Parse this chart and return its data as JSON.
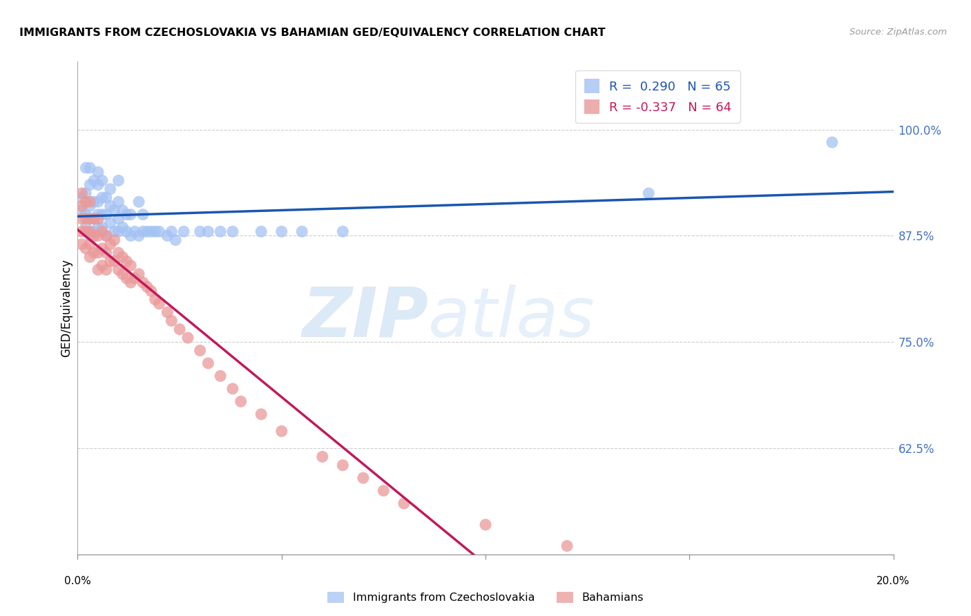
{
  "title": "IMMIGRANTS FROM CZECHOSLOVAKIA VS BAHAMIAN GED/EQUIVALENCY CORRELATION CHART",
  "source": "Source: ZipAtlas.com",
  "ylabel": "GED/Equivalency",
  "y_ticks": [
    0.625,
    0.75,
    0.875,
    1.0
  ],
  "y_tick_labels": [
    "62.5%",
    "75.0%",
    "87.5%",
    "100.0%"
  ],
  "x_lim": [
    0.0,
    0.2
  ],
  "y_lim": [
    0.5,
    1.08
  ],
  "R_blue": 0.29,
  "N_blue": 65,
  "R_pink": -0.337,
  "N_pink": 64,
  "blue_color": "#a4c2f4",
  "pink_color": "#ea9999",
  "blue_line_color": "#1a56b0",
  "pink_line_color": "#c2185b",
  "legend_blue_label": "Immigrants from Czechoslovakia",
  "legend_pink_label": "Bahamians",
  "blue_x": [
    0.001,
    0.001,
    0.002,
    0.002,
    0.002,
    0.002,
    0.003,
    0.003,
    0.003,
    0.003,
    0.003,
    0.004,
    0.004,
    0.004,
    0.004,
    0.005,
    0.005,
    0.005,
    0.005,
    0.005,
    0.006,
    0.006,
    0.006,
    0.006,
    0.007,
    0.007,
    0.007,
    0.008,
    0.008,
    0.008,
    0.009,
    0.009,
    0.01,
    0.01,
    0.01,
    0.01,
    0.011,
    0.011,
    0.012,
    0.012,
    0.013,
    0.013,
    0.014,
    0.015,
    0.015,
    0.016,
    0.016,
    0.017,
    0.018,
    0.019,
    0.02,
    0.022,
    0.023,
    0.024,
    0.026,
    0.03,
    0.032,
    0.035,
    0.038,
    0.045,
    0.05,
    0.055,
    0.065,
    0.14,
    0.185
  ],
  "blue_y": [
    0.905,
    0.92,
    0.885,
    0.9,
    0.925,
    0.955,
    0.875,
    0.895,
    0.91,
    0.935,
    0.955,
    0.88,
    0.895,
    0.915,
    0.94,
    0.885,
    0.9,
    0.915,
    0.935,
    0.95,
    0.885,
    0.9,
    0.92,
    0.94,
    0.875,
    0.9,
    0.92,
    0.89,
    0.91,
    0.93,
    0.88,
    0.905,
    0.88,
    0.895,
    0.915,
    0.94,
    0.885,
    0.905,
    0.88,
    0.9,
    0.875,
    0.9,
    0.88,
    0.875,
    0.915,
    0.88,
    0.9,
    0.88,
    0.88,
    0.88,
    0.88,
    0.875,
    0.88,
    0.87,
    0.88,
    0.88,
    0.88,
    0.88,
    0.88,
    0.88,
    0.88,
    0.88,
    0.88,
    0.925,
    0.985
  ],
  "pink_x": [
    0.001,
    0.001,
    0.001,
    0.001,
    0.001,
    0.002,
    0.002,
    0.002,
    0.002,
    0.003,
    0.003,
    0.003,
    0.003,
    0.003,
    0.004,
    0.004,
    0.004,
    0.005,
    0.005,
    0.005,
    0.005,
    0.006,
    0.006,
    0.006,
    0.007,
    0.007,
    0.007,
    0.008,
    0.008,
    0.009,
    0.009,
    0.01,
    0.01,
    0.011,
    0.011,
    0.012,
    0.012,
    0.013,
    0.013,
    0.014,
    0.015,
    0.016,
    0.017,
    0.018,
    0.019,
    0.02,
    0.022,
    0.023,
    0.025,
    0.027,
    0.03,
    0.032,
    0.035,
    0.038,
    0.04,
    0.045,
    0.05,
    0.06,
    0.065,
    0.07,
    0.075,
    0.08,
    0.1,
    0.12
  ],
  "pink_y": [
    0.925,
    0.91,
    0.895,
    0.88,
    0.865,
    0.915,
    0.895,
    0.88,
    0.86,
    0.915,
    0.895,
    0.88,
    0.865,
    0.85,
    0.895,
    0.875,
    0.855,
    0.895,
    0.875,
    0.855,
    0.835,
    0.88,
    0.86,
    0.84,
    0.875,
    0.855,
    0.835,
    0.865,
    0.845,
    0.87,
    0.845,
    0.855,
    0.835,
    0.85,
    0.83,
    0.845,
    0.825,
    0.84,
    0.82,
    0.825,
    0.83,
    0.82,
    0.815,
    0.81,
    0.8,
    0.795,
    0.785,
    0.775,
    0.765,
    0.755,
    0.74,
    0.725,
    0.71,
    0.695,
    0.68,
    0.665,
    0.645,
    0.615,
    0.605,
    0.59,
    0.575,
    0.56,
    0.535,
    0.51
  ]
}
